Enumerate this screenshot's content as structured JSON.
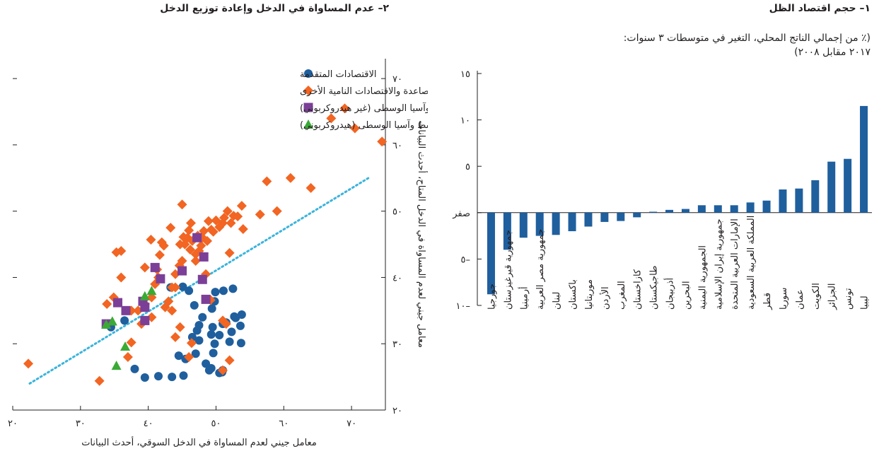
{
  "panel1": {
    "title": "١– حجم اقتصاد الظل",
    "subtitle_line1": "(٪ من إجمالي الناتج المحلي، التغير في متوسطات ٣ سنوات:",
    "subtitle_line2": "٢٠١٧ مقابل ٢٠٠٨)"
  },
  "panel2": {
    "title": "٢– عدم المساواة في الدخل وإعادة توزيع الدخل"
  },
  "colors": {
    "bar": "#1f5f9e",
    "advanced": "#1f5f9e",
    "emerging": "#f26522",
    "mcd_nonhydro": "#7b3f98",
    "mcd_hydro": "#3aaa35",
    "trend": "#3ab4dc"
  },
  "chart_data": [
    {
      "type": "bar",
      "categories": [
        "جورجيا",
        "جمهورية قيرغيزستان",
        "أرمينيا",
        "جمهورية مصر العربية",
        "لبنان",
        "باكستان",
        "موريتانيا",
        "الأردن",
        "المغرب",
        "كازاخستان",
        "طاجيكستان",
        "أذربيجان",
        "البحرين",
        "الجمهورية اليمنية",
        "جمهورية إيران الإسلامية",
        "الإمارات العربية المتحدة",
        "المملكة العربية السعودية",
        "قطر",
        "سوريا",
        "عمان",
        "الكويت",
        "الجزائر",
        "تونس",
        "ليبيا"
      ],
      "values": [
        -8.8,
        -4.0,
        -2.7,
        -2.5,
        -2.4,
        -2.0,
        -1.5,
        -1.0,
        -0.9,
        -0.5,
        0.1,
        0.3,
        0.4,
        0.8,
        0.8,
        0.8,
        1.1,
        1.3,
        2.5,
        2.6,
        3.5,
        5.5,
        5.8,
        11.5
      ],
      "ylim": [
        -10,
        15
      ],
      "yticks": [
        -10,
        -5,
        0,
        5,
        10,
        15
      ],
      "ytick_labels": [
        "١٠–",
        "٥–",
        "صفر",
        "٥",
        "١٠",
        "١٥"
      ],
      "grid": false
    },
    {
      "type": "scatter",
      "xlabel": "معامل جيني لعدم المساواة في الدخل السوقي، أحدث البيانات",
      "ylabel": "معامل جيني لعدم المساواة في الدخل المتاح، أحدث البيانات",
      "xlim": [
        20,
        75
      ],
      "ylim": [
        20,
        73
      ],
      "xticks": [
        20,
        30,
        40,
        50,
        60,
        70
      ],
      "xtick_labels": [
        "٢٠",
        "٣٠",
        "٤٠",
        "٥٠",
        "٦٠",
        "٧٠"
      ],
      "yticks": [
        20,
        30,
        40,
        50,
        60,
        70
      ],
      "ytick_labels": [
        "٢٠",
        "٣٠",
        "٤٠",
        "٥٠",
        "٦٠",
        "٧٠"
      ],
      "legend_position": "top-left",
      "trendline": {
        "x": [
          22.5,
          72.5
        ],
        "y": [
          24.0,
          55.0
        ]
      },
      "series": [
        {
          "name": "الاقتصادات المتقدمة",
          "marker": "circle",
          "points": [
            [
              36.5,
              33.5
            ],
            [
              34.5,
              32.5
            ],
            [
              38,
              26.2
            ],
            [
              39.5,
              24.9
            ],
            [
              41.5,
              25.1
            ],
            [
              43.5,
              25.0
            ],
            [
              45.2,
              25.2
            ],
            [
              45.5,
              27.7
            ],
            [
              44.5,
              28.2
            ],
            [
              47,
              28.5
            ],
            [
              46.5,
              31.0
            ],
            [
              47.2,
              32.0
            ],
            [
              47.5,
              30.5
            ],
            [
              47.5,
              32.8
            ],
            [
              48,
              34.0
            ],
            [
              48.5,
              27.0
            ],
            [
              49,
              26.0
            ],
            [
              49.3,
              26.3
            ],
            [
              49.6,
              28.6
            ],
            [
              49.8,
              30.0
            ],
            [
              49.3,
              31.4
            ],
            [
              49.5,
              32.5
            ],
            [
              50.5,
              25.6
            ],
            [
              50.9,
              25.7
            ],
            [
              51.0,
              26.0
            ],
            [
              50.5,
              31.3
            ],
            [
              51.0,
              33.0
            ],
            [
              51.5,
              33.2
            ],
            [
              52.0,
              30.3
            ],
            [
              52.3,
              31.8
            ],
            [
              52.7,
              34.1
            ],
            [
              52.9,
              33.9
            ],
            [
              53.6,
              32.7
            ],
            [
              53.8,
              34.4
            ],
            [
              53.7,
              30.1
            ],
            [
              51.1,
              38.0
            ],
            [
              52.5,
              38.3
            ],
            [
              49.9,
              37.8
            ],
            [
              49.8,
              36.4
            ],
            [
              49.4,
              35.3
            ],
            [
              46.8,
              35.8
            ],
            [
              46.0,
              38.0
            ],
            [
              45.1,
              38.6
            ],
            [
              43.3,
              38.5
            ]
          ]
        },
        {
          "name": "الأسواق الصاعدة والاقتصادات النامية الأخرى",
          "marker": "diamond",
          "points": [
            [
              22.3,
              27.0
            ],
            [
              32.8,
              24.4
            ],
            [
              37,
              28.0
            ],
            [
              37.5,
              30.2
            ],
            [
              38.5,
              35.0
            ],
            [
              39,
              33.0
            ],
            [
              39.5,
              36.0
            ],
            [
              40.5,
              34.0
            ],
            [
              40.5,
              37.0
            ],
            [
              41,
              39.0
            ],
            [
              41.5,
              40.0
            ],
            [
              41.3,
              41.2
            ],
            [
              41.7,
              43.4
            ],
            [
              42.3,
              44.8
            ],
            [
              43.0,
              36.4
            ],
            [
              43.5,
              35.0
            ],
            [
              43.5,
              38.5
            ],
            [
              44.0,
              40.5
            ],
            [
              44.6,
              41.8
            ],
            [
              45.0,
              42.5
            ],
            [
              45.4,
              45.0
            ],
            [
              45.8,
              46.0
            ],
            [
              46.0,
              47.1
            ],
            [
              46.3,
              48.2
            ],
            [
              46.5,
              45.5
            ],
            [
              47.0,
              43.5
            ],
            [
              47.5,
              44.0
            ],
            [
              47.8,
              44.8
            ],
            [
              48.0,
              46.0
            ],
            [
              48.2,
              47.0
            ],
            [
              48.7,
              45.5
            ],
            [
              48.9,
              48.5
            ],
            [
              49.3,
              47.2
            ],
            [
              49.6,
              46.9
            ],
            [
              50.0,
              48.6
            ],
            [
              50.5,
              47.6
            ],
            [
              51.0,
              48.2
            ],
            [
              51.2,
              49.0
            ],
            [
              51.7,
              50.0
            ],
            [
              52.2,
              48.2
            ],
            [
              52.6,
              49.3
            ],
            [
              53.2,
              49.2
            ],
            [
              53.8,
              50.8
            ],
            [
              45.2,
              46.1
            ],
            [
              44.0,
              38.5
            ],
            [
              42.5,
              35.5
            ],
            [
              44.7,
              32.5
            ],
            [
              44.0,
              31.0
            ],
            [
              46.4,
              30.1
            ],
            [
              46.0,
              28.0
            ],
            [
              49.2,
              36.6
            ],
            [
              51.0,
              33.5
            ],
            [
              51.5,
              33.0
            ],
            [
              52.0,
              27.5
            ],
            [
              51.0,
              26.0
            ],
            [
              48.5,
              40.5
            ],
            [
              47.0,
              42.5
            ],
            [
              39.5,
              41.5
            ],
            [
              36.0,
              40.0
            ],
            [
              37.5,
              35.0
            ],
            [
              34.9,
              37.0
            ],
            [
              36.0,
              44.0
            ],
            [
              33.9,
              36.0
            ],
            [
              35.3,
              43.8
            ],
            [
              39.5,
              36.8
            ],
            [
              40.4,
              45.7
            ],
            [
              42.0,
              45.3
            ],
            [
              43.3,
              47.5
            ],
            [
              44.7,
              45.0
            ],
            [
              46.2,
              44.2
            ],
            [
              45.0,
              51.0
            ],
            [
              47.3,
              46.3
            ],
            [
              52.0,
              43.7
            ],
            [
              54.0,
              47.3
            ],
            [
              56.5,
              49.5
            ],
            [
              57.5,
              54.5
            ],
            [
              59.0,
              50.0
            ],
            [
              61.0,
              55.0
            ],
            [
              64.0,
              53.5
            ],
            [
              67.0,
              64.0
            ],
            [
              69.0,
              65.5
            ],
            [
              70.5,
              62.5
            ],
            [
              74.5,
              60.5
            ]
          ]
        },
        {
          "name": "الشرق الأوسط وآسيا الوسطى (غير هيدروكربوني)",
          "marker": "square",
          "points": [
            [
              33.8,
              33.0
            ],
            [
              35.5,
              36.2
            ],
            [
              36.7,
              35.0
            ],
            [
              39.5,
              35.5
            ],
            [
              39.2,
              36.4
            ],
            [
              39.5,
              33.5
            ],
            [
              41.0,
              41.5
            ],
            [
              41.8,
              39.8
            ],
            [
              45.0,
              41.0
            ],
            [
              47.2,
              46.0
            ],
            [
              48.0,
              39.7
            ],
            [
              48.2,
              43.1
            ],
            [
              48.5,
              36.7
            ]
          ]
        },
        {
          "name": "الشرق الأوسط وآسيا الوسطى (هيدروكربوني)",
          "marker": "triangle",
          "points": [
            [
              33.8,
              32.9
            ],
            [
              34.7,
              33.4
            ],
            [
              36.6,
              29.6
            ],
            [
              39.5,
              37.2
            ],
            [
              40.5,
              38.0
            ],
            [
              35.3,
              26.7
            ]
          ]
        }
      ]
    }
  ]
}
